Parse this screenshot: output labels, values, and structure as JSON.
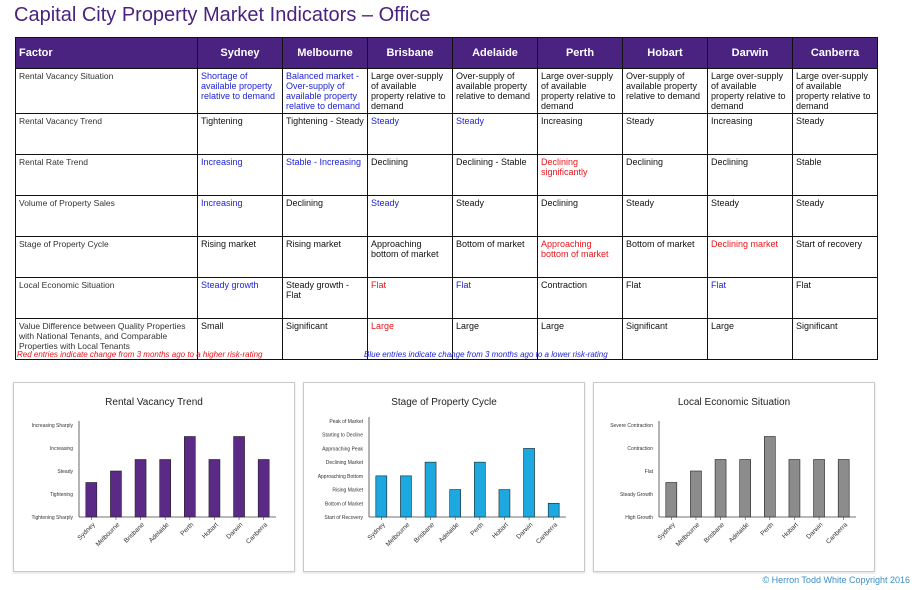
{
  "title": "Capital City Property Market Indicators – Office",
  "table": {
    "header_factor": "Factor",
    "cities": [
      "Sydney",
      "Melbourne",
      "Brisbane",
      "Adelaide",
      "Perth",
      "Hobart",
      "Darwin",
      "Canberra"
    ],
    "rows": [
      {
        "factor": "Rental Vacancy Situation",
        "cells": [
          {
            "text": "Shortage of available property relative to demand",
            "color": "blue"
          },
          {
            "text": "Balanced market - Over-supply of available property relative to demand",
            "color": "blue"
          },
          {
            "text": "Large over-supply of available property relative to demand",
            "color": "black"
          },
          {
            "text": "Over-supply of available property relative to demand",
            "color": "black"
          },
          {
            "text": "Large over-supply of available property relative to demand",
            "color": "black"
          },
          {
            "text": "Over-supply of available property relative to demand",
            "color": "black"
          },
          {
            "text": "Large over-supply of available property relative to demand",
            "color": "black"
          },
          {
            "text": "Large over-supply of available property relative to demand",
            "color": "black"
          }
        ]
      },
      {
        "factor": "Rental Vacancy Trend",
        "cells": [
          {
            "text": "Tightening",
            "color": "black"
          },
          {
            "text": "Tightening - Steady",
            "color": "black"
          },
          {
            "text": "Steady",
            "color": "blue"
          },
          {
            "text": "Steady",
            "color": "blue"
          },
          {
            "text": "Increasing",
            "color": "black"
          },
          {
            "text": "Steady",
            "color": "black"
          },
          {
            "text": "Increasing",
            "color": "black"
          },
          {
            "text": "Steady",
            "color": "black"
          }
        ]
      },
      {
        "factor": "Rental Rate Trend",
        "cells": [
          {
            "text": "Increasing",
            "color": "blue"
          },
          {
            "text": "Stable - Increasing",
            "color": "blue"
          },
          {
            "text": "Declining",
            "color": "black"
          },
          {
            "text": "Declining - Stable",
            "color": "black"
          },
          {
            "text": "Declining significantly",
            "color": "red"
          },
          {
            "text": "Declining",
            "color": "black"
          },
          {
            "text": "Declining",
            "color": "black"
          },
          {
            "text": "Stable",
            "color": "black"
          }
        ]
      },
      {
        "factor": "Volume of Property Sales",
        "cells": [
          {
            "text": "Increasing",
            "color": "blue"
          },
          {
            "text": "Declining",
            "color": "black"
          },
          {
            "text": "Steady",
            "color": "blue"
          },
          {
            "text": "Steady",
            "color": "black"
          },
          {
            "text": "Declining",
            "color": "black"
          },
          {
            "text": "Steady",
            "color": "black"
          },
          {
            "text": "Steady",
            "color": "black"
          },
          {
            "text": "Steady",
            "color": "black"
          }
        ]
      },
      {
        "factor": "Stage of Property Cycle",
        "cells": [
          {
            "text": "Rising market",
            "color": "black"
          },
          {
            "text": "Rising market",
            "color": "black"
          },
          {
            "text": "Approaching bottom of market",
            "color": "black"
          },
          {
            "text": "Bottom of market",
            "color": "black"
          },
          {
            "text": "Approaching bottom of market",
            "color": "red"
          },
          {
            "text": "Bottom of market",
            "color": "black"
          },
          {
            "text": "Declining market",
            "color": "red"
          },
          {
            "text": "Start of recovery",
            "color": "black"
          }
        ]
      },
      {
        "factor": "Local Economic Situation",
        "cells": [
          {
            "text": "Steady growth",
            "color": "blue"
          },
          {
            "text": "Steady growth - Flat",
            "color": "black"
          },
          {
            "text": "Flat",
            "color": "red"
          },
          {
            "text": "Flat",
            "color": "blue"
          },
          {
            "text": "Contraction",
            "color": "black"
          },
          {
            "text": "Flat",
            "color": "black"
          },
          {
            "text": "Flat",
            "color": "blue"
          },
          {
            "text": "Flat",
            "color": "black"
          }
        ]
      },
      {
        "factor": "Value Difference between Quality Properties with National Tenants, and Comparable Properties with Local Tenants",
        "cells": [
          {
            "text": "Small",
            "color": "black"
          },
          {
            "text": "Significant",
            "color": "black"
          },
          {
            "text": "Large",
            "color": "red"
          },
          {
            "text": "Large",
            "color": "black"
          },
          {
            "text": "Large",
            "color": "black"
          },
          {
            "text": "Significant",
            "color": "black"
          },
          {
            "text": "Large",
            "color": "black"
          },
          {
            "text": "Significant",
            "color": "black"
          }
        ]
      }
    ]
  },
  "notes": {
    "red": "Red entries indicate change from 3 months ago to a higher risk-rating",
    "blue": "Blue entries indicate change from 3 months ago to a lower risk-rating"
  },
  "colors": {
    "header": "#4a2380",
    "red": "#e8141c",
    "blue": "#1b1fd1",
    "chart1": "#5b2a86",
    "chart2": "#1da8e0",
    "chart3": "#8c8c8c"
  },
  "chart_data": [
    {
      "type": "bar",
      "title": "Rental Vacancy Trend",
      "categories": [
        "Sydney",
        "Melbourne",
        "Brisbane",
        "Adelaide",
        "Perth",
        "Hobart",
        "Darwin",
        "Canberra"
      ],
      "levels": [
        "Tightening Sharply",
        "Tightening",
        "Steady",
        "Increasing",
        "Increasing Sharply"
      ],
      "values": [
        1.5,
        2,
        2.5,
        2.5,
        3.5,
        2.5,
        3.5,
        2.5
      ]
    },
    {
      "type": "bar",
      "title": "Stage of Property Cycle",
      "categories": [
        "Sydney",
        "Melbourne",
        "Brisbane",
        "Adelaide",
        "Perth",
        "Hobart",
        "Darwin",
        "Canberra"
      ],
      "levels": [
        "Start of Recovery",
        "Bottom of Market",
        "Rising Market",
        "Approaching Bottom",
        "Declining Market",
        "Approaching Peak",
        "Starting to Decline",
        "Peak of Market"
      ],
      "values": [
        3,
        3,
        4,
        2,
        4,
        2,
        5,
        1
      ]
    },
    {
      "type": "bar",
      "title": "Local Economic Situation",
      "categories": [
        "Sydney",
        "Melbourne",
        "Brisbane",
        "Adelaide",
        "Perth",
        "Hobart",
        "Darwin",
        "Canberra"
      ],
      "levels": [
        "High Growth",
        "Steady Growth",
        "Flat",
        "Contraction",
        "Severe Contraction"
      ],
      "values": [
        1.5,
        2,
        2.5,
        2.5,
        3.5,
        2.5,
        2.5,
        2.5
      ]
    }
  ],
  "copyright": "© Herron Todd White Copyright 2016"
}
